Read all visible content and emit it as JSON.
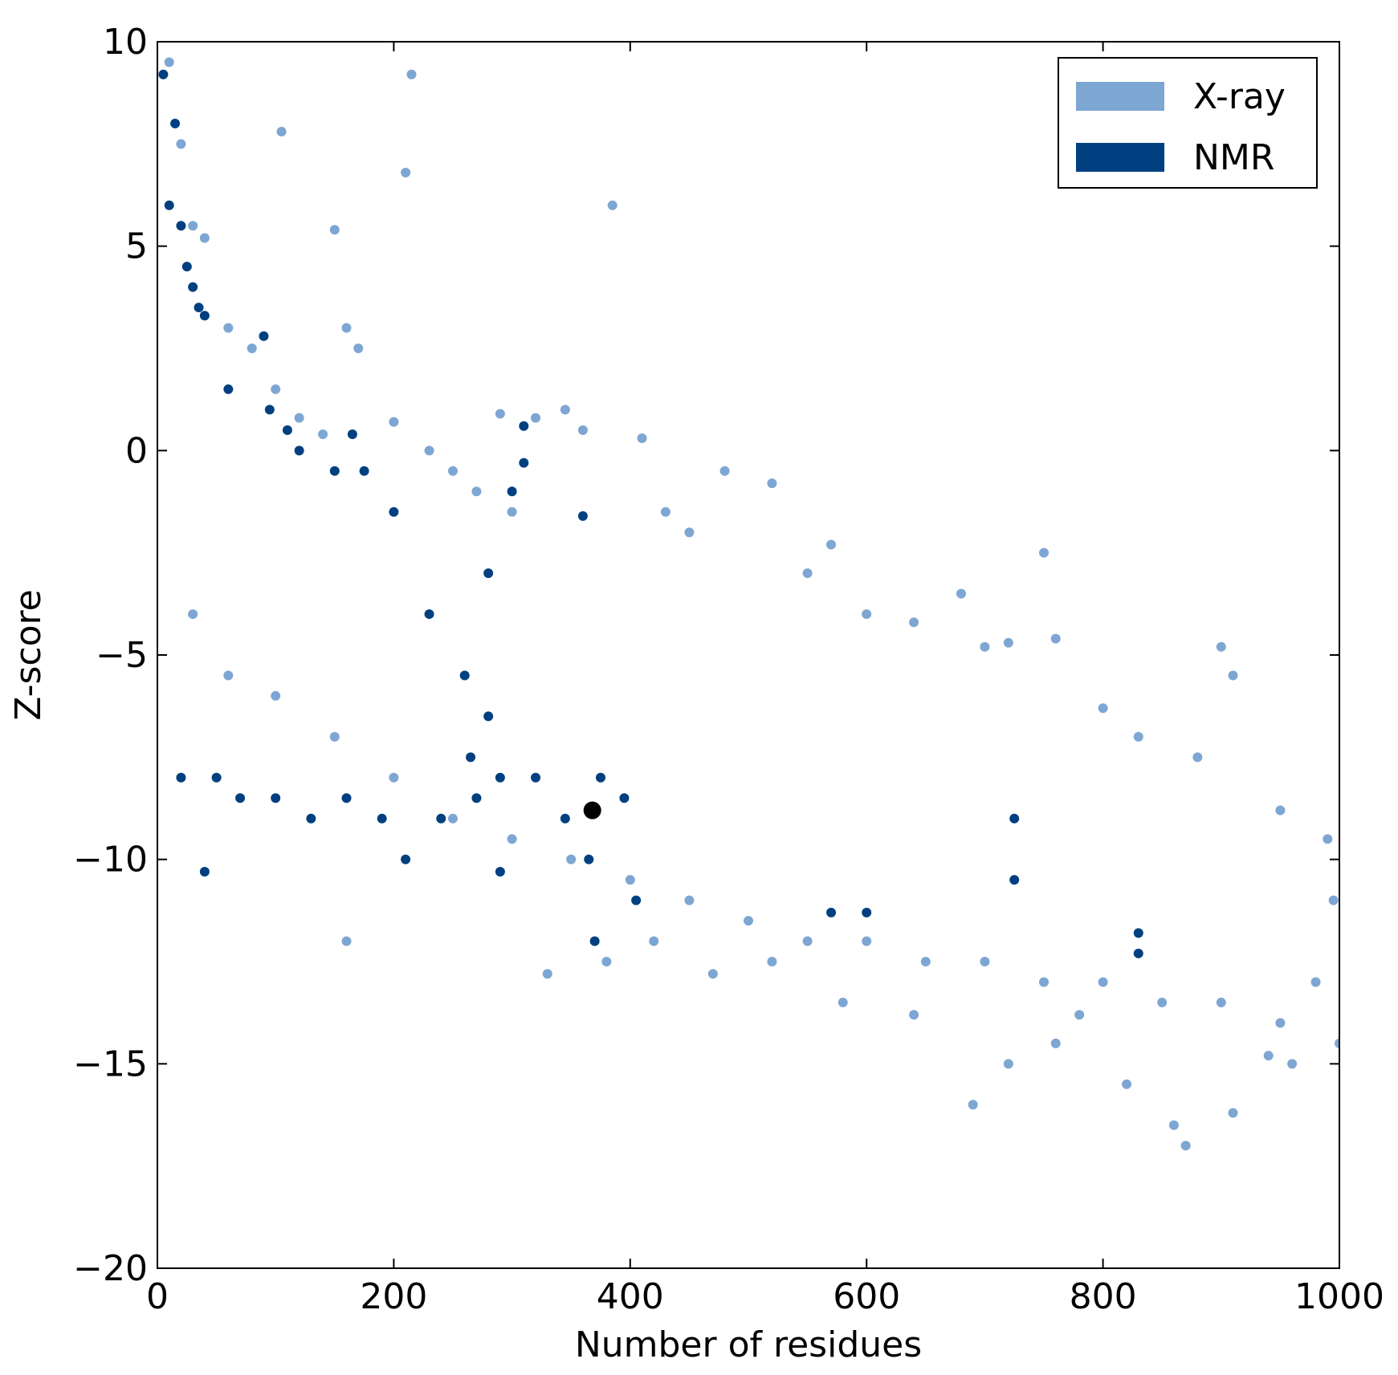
{
  "chart_data": {
    "type": "scatter",
    "title": "",
    "xlabel": "Number of residues",
    "ylabel": "Z-score",
    "xlim": [
      0,
      1000
    ],
    "ylim": [
      -20,
      10
    ],
    "xticks": [
      0,
      200,
      400,
      600,
      800,
      1000
    ],
    "yticks": [
      -20,
      -15,
      -10,
      -5,
      0,
      5,
      10
    ],
    "grid": false,
    "legend_position": "top-right",
    "series": [
      {
        "name": "X-ray",
        "color": "#7ea6d3",
        "description_key": "xray",
        "points": [
          [
            10,
            9.5
          ],
          [
            20,
            7.5
          ],
          [
            30,
            5.5
          ],
          [
            40,
            5.2
          ],
          [
            60,
            3.0
          ],
          [
            80,
            2.5
          ],
          [
            100,
            1.5
          ],
          [
            105,
            7.8
          ],
          [
            120,
            0.8
          ],
          [
            140,
            0.4
          ],
          [
            150,
            5.4
          ],
          [
            160,
            3.0
          ],
          [
            170,
            2.5
          ],
          [
            200,
            0.7
          ],
          [
            210,
            6.8
          ],
          [
            215,
            9.2
          ],
          [
            230,
            0.0
          ],
          [
            250,
            -0.5
          ],
          [
            270,
            -1.0
          ],
          [
            290,
            0.9
          ],
          [
            300,
            -1.5
          ],
          [
            320,
            0.8
          ],
          [
            345,
            1.0
          ],
          [
            360,
            0.5
          ],
          [
            385,
            6.0
          ],
          [
            410,
            0.3
          ],
          [
            430,
            -1.5
          ],
          [
            450,
            -2.0
          ],
          [
            480,
            -0.5
          ],
          [
            520,
            -0.8
          ],
          [
            550,
            -3.0
          ],
          [
            570,
            -2.3
          ],
          [
            600,
            -4.0
          ],
          [
            640,
            -4.2
          ],
          [
            680,
            -3.5
          ],
          [
            700,
            -4.8
          ],
          [
            720,
            -4.7
          ],
          [
            750,
            -2.5
          ],
          [
            760,
            -4.6
          ],
          [
            800,
            -6.3
          ],
          [
            830,
            -7.0
          ],
          [
            880,
            -7.5
          ],
          [
            900,
            -4.8
          ],
          [
            910,
            -5.5
          ],
          [
            950,
            -8.8
          ],
          [
            990,
            -9.5
          ],
          [
            30,
            -4.0
          ],
          [
            60,
            -5.5
          ],
          [
            100,
            -6.0
          ],
          [
            150,
            -7.0
          ],
          [
            200,
            -8.0
          ],
          [
            250,
            -9.0
          ],
          [
            300,
            -9.5
          ],
          [
            350,
            -10.0
          ],
          [
            400,
            -10.5
          ],
          [
            450,
            -11.0
          ],
          [
            500,
            -11.5
          ],
          [
            550,
            -12.0
          ],
          [
            600,
            -12.0
          ],
          [
            650,
            -12.5
          ],
          [
            700,
            -12.5
          ],
          [
            750,
            -13.0
          ],
          [
            800,
            -13.0
          ],
          [
            850,
            -13.5
          ],
          [
            900,
            -13.5
          ],
          [
            950,
            -14.0
          ],
          [
            1000,
            -14.5
          ],
          [
            160,
            -12.0
          ],
          [
            580,
            -13.5
          ],
          [
            640,
            -13.8
          ],
          [
            690,
            -16.0
          ],
          [
            760,
            -14.5
          ],
          [
            820,
            -15.5
          ],
          [
            860,
            -16.5
          ],
          [
            870,
            -17.0
          ],
          [
            910,
            -16.2
          ],
          [
            940,
            -14.8
          ],
          [
            995,
            -11.0
          ],
          [
            980,
            -13.0
          ],
          [
            960,
            -15.0
          ],
          [
            720,
            -15.0
          ],
          [
            780,
            -13.8
          ],
          [
            330,
            -12.8
          ],
          [
            380,
            -12.5
          ],
          [
            420,
            -12.0
          ],
          [
            470,
            -12.8
          ],
          [
            520,
            -12.5
          ]
        ]
      },
      {
        "name": "NMR",
        "color": "#004080",
        "description_key": "nmr",
        "points": [
          [
            5,
            9.2
          ],
          [
            10,
            6.0
          ],
          [
            15,
            8.0
          ],
          [
            20,
            5.5
          ],
          [
            25,
            4.5
          ],
          [
            30,
            4.0
          ],
          [
            35,
            3.5
          ],
          [
            40,
            3.3
          ],
          [
            60,
            1.5
          ],
          [
            90,
            2.8
          ],
          [
            95,
            1.0
          ],
          [
            110,
            0.5
          ],
          [
            120,
            0.0
          ],
          [
            150,
            -0.5
          ],
          [
            165,
            0.4
          ],
          [
            175,
            -0.5
          ],
          [
            200,
            -1.5
          ],
          [
            230,
            -4.0
          ],
          [
            260,
            -5.5
          ],
          [
            280,
            -3.0
          ],
          [
            300,
            -1.0
          ],
          [
            310,
            0.6
          ],
          [
            310,
            -0.3
          ],
          [
            360,
            -1.6
          ],
          [
            375,
            -8.0
          ],
          [
            395,
            -8.5
          ],
          [
            20,
            -8.0
          ],
          [
            40,
            -10.3
          ],
          [
            50,
            -8.0
          ],
          [
            70,
            -8.5
          ],
          [
            100,
            -8.5
          ],
          [
            130,
            -9.0
          ],
          [
            160,
            -8.5
          ],
          [
            190,
            -9.0
          ],
          [
            210,
            -10.0
          ],
          [
            240,
            -9.0
          ],
          [
            270,
            -8.5
          ],
          [
            290,
            -8.0
          ],
          [
            320,
            -8.0
          ],
          [
            345,
            -9.0
          ],
          [
            365,
            -10.0
          ],
          [
            370,
            -12.0
          ],
          [
            405,
            -11.0
          ],
          [
            570,
            -11.3
          ],
          [
            600,
            -11.3
          ],
          [
            725,
            -9.0
          ],
          [
            725,
            -10.5
          ],
          [
            830,
            -11.8
          ],
          [
            830,
            -12.3
          ],
          [
            290,
            -10.3
          ],
          [
            280,
            -6.5
          ],
          [
            265,
            -7.5
          ]
        ]
      }
    ],
    "highlight_point": {
      "x": 368,
      "y": -8.8,
      "color": "#000000"
    }
  }
}
